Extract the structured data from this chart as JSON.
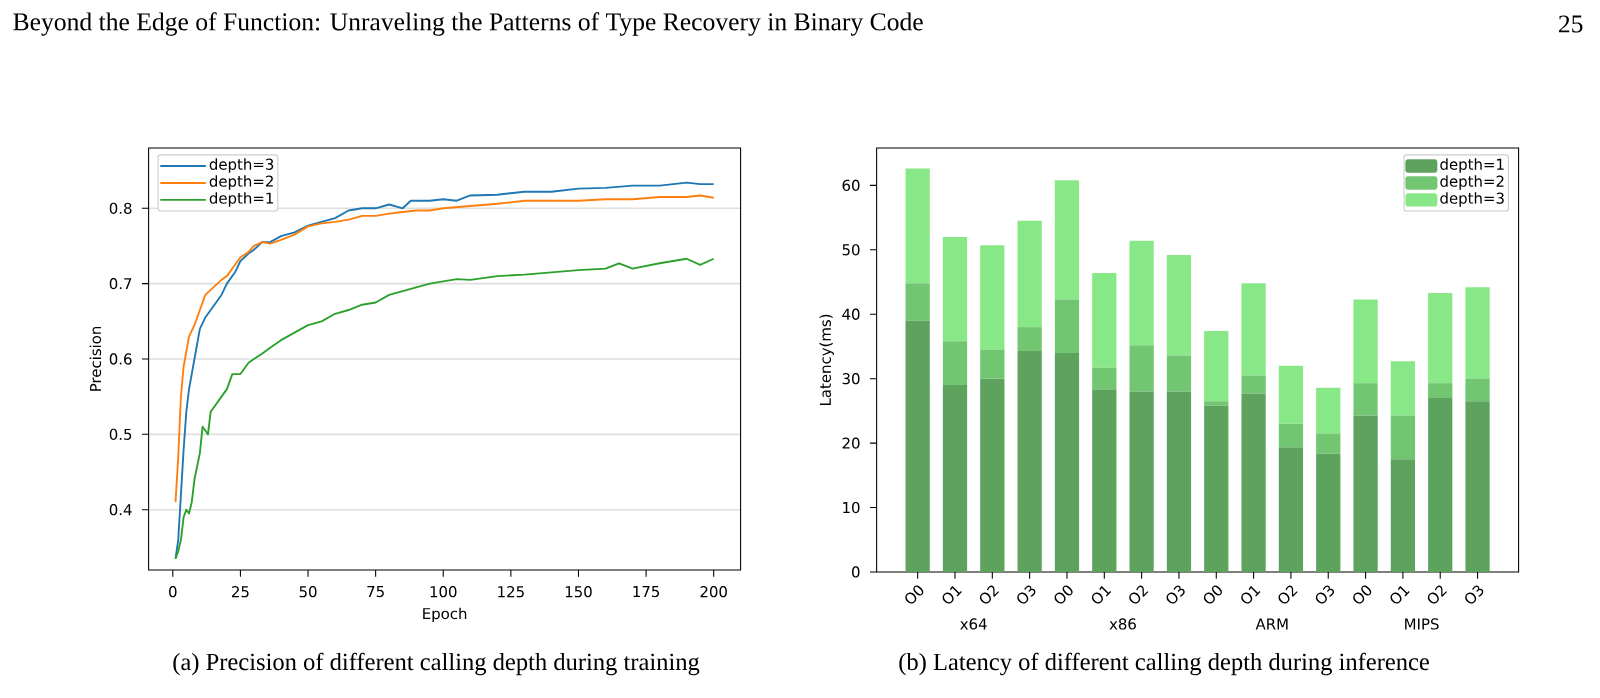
{
  "chart_data": [
    {
      "type": "line",
      "title": "(a) Precision of different calling depth during training",
      "xlabel": "Epoch",
      "ylabel": "Precision",
      "annotations": [
        "Beyond the Edge of Function: Unraveling the Patterns of Type Recovery in Binary Code",
        "25"
      ],
      "xlim": [
        -8.95,
        209.95
      ],
      "ylim": [
        0.32,
        0.88
      ],
      "xticks": [
        0,
        25,
        50,
        75,
        100,
        125,
        150,
        175,
        200
      ],
      "yticks": [
        0.4,
        0.5,
        0.6,
        0.7,
        0.8
      ],
      "grid": "y",
      "legend": "top left",
      "series": [
        {
          "name": "depth=3",
          "color": "#1f77b4",
          "x": [
            1,
            2,
            3,
            4,
            5,
            6,
            8,
            10,
            12,
            15,
            18,
            20,
            23,
            25,
            28,
            30,
            33,
            36,
            40,
            45,
            50,
            55,
            60,
            65,
            70,
            75,
            80,
            85,
            88,
            95,
            100,
            105,
            110,
            120,
            130,
            140,
            150,
            160,
            170,
            180,
            190,
            195,
            200
          ],
          "values": [
            0.335,
            0.36,
            0.42,
            0.48,
            0.53,
            0.56,
            0.6,
            0.64,
            0.655,
            0.67,
            0.685,
            0.7,
            0.715,
            0.73,
            0.74,
            0.745,
            0.755,
            0.755,
            0.763,
            0.768,
            0.777,
            0.782,
            0.787,
            0.797,
            0.8,
            0.8,
            0.805,
            0.8,
            0.81,
            0.81,
            0.812,
            0.81,
            0.817,
            0.818,
            0.822,
            0.822,
            0.826,
            0.827,
            0.83,
            0.83,
            0.834,
            0.832,
            0.832
          ]
        },
        {
          "name": "depth=2",
          "color": "#ff7f0e",
          "x": [
            1,
            2,
            3,
            4,
            6,
            8,
            10,
            12,
            15,
            18,
            20,
            23,
            25,
            28,
            30,
            33,
            36,
            40,
            45,
            50,
            55,
            60,
            65,
            70,
            75,
            80,
            85,
            90,
            95,
            100,
            110,
            120,
            130,
            140,
            150,
            160,
            170,
            180,
            190,
            195,
            200
          ],
          "values": [
            0.41,
            0.47,
            0.55,
            0.59,
            0.63,
            0.645,
            0.665,
            0.685,
            0.695,
            0.705,
            0.71,
            0.725,
            0.735,
            0.742,
            0.75,
            0.755,
            0.753,
            0.758,
            0.765,
            0.776,
            0.78,
            0.782,
            0.785,
            0.79,
            0.79,
            0.793,
            0.795,
            0.797,
            0.797,
            0.8,
            0.803,
            0.806,
            0.81,
            0.81,
            0.81,
            0.812,
            0.812,
            0.815,
            0.815,
            0.817,
            0.814
          ]
        },
        {
          "name": "depth=1",
          "color": "#2ca02c",
          "x": [
            1,
            2,
            3,
            4,
            5,
            6,
            7,
            8,
            10,
            11,
            12,
            13,
            14,
            16,
            18,
            20,
            22,
            25,
            28,
            30,
            33,
            36,
            40,
            45,
            50,
            55,
            60,
            65,
            70,
            75,
            80,
            85,
            90,
            95,
            100,
            105,
            110,
            120,
            130,
            140,
            150,
            160,
            165,
            170,
            180,
            190,
            195,
            200
          ],
          "values": [
            0.335,
            0.345,
            0.36,
            0.39,
            0.4,
            0.395,
            0.41,
            0.44,
            0.475,
            0.51,
            0.505,
            0.5,
            0.53,
            0.54,
            0.55,
            0.56,
            0.58,
            0.58,
            0.595,
            0.6,
            0.607,
            0.615,
            0.625,
            0.635,
            0.645,
            0.65,
            0.66,
            0.665,
            0.672,
            0.675,
            0.685,
            0.69,
            0.695,
            0.7,
            0.703,
            0.706,
            0.705,
            0.71,
            0.712,
            0.715,
            0.718,
            0.72,
            0.727,
            0.72,
            0.727,
            0.733,
            0.725,
            0.733
          ]
        }
      ]
    },
    {
      "type": "bar",
      "title": "(b) Latency of different calling depth during inference",
      "ylabel": "Latency(ms)",
      "annotations": [
        "x64",
        "x86",
        "ARM",
        "MIPS"
      ],
      "stacked": true,
      "ylim": [
        0,
        65.8
      ],
      "yticks": [
        0,
        10,
        20,
        30,
        40,
        50,
        60
      ],
      "legend": "top right",
      "categories": [
        "O0",
        "O1",
        "O2",
        "O3",
        "O0",
        "O1",
        "O2",
        "O3",
        "O0",
        "O1",
        "O2",
        "O3",
        "O0",
        "O1",
        "O2",
        "O3"
      ],
      "series": [
        {
          "name": "depth=1",
          "color": "#5da35d",
          "values": [
            39,
            29,
            30,
            34.3,
            34,
            28.3,
            28,
            28,
            25.8,
            27.7,
            19.3,
            18.4,
            24.3,
            17.5,
            27,
            26.5
          ]
        },
        {
          "name": "depth=2",
          "color": "#72c672",
          "values": [
            5.8,
            6.8,
            4.5,
            3.7,
            8.3,
            3.4,
            7.2,
            5.6,
            0.7,
            2.8,
            3.7,
            3.1,
            5,
            6.8,
            2.3,
            3.5
          ]
        },
        {
          "name": "depth=3",
          "color": "#88e888",
          "values": [
            17.8,
            16.2,
            16.2,
            16.5,
            18.5,
            14.7,
            16.2,
            15.6,
            10.9,
            14.3,
            9,
            7.1,
            13,
            8.4,
            14,
            14.2
          ]
        }
      ]
    }
  ]
}
